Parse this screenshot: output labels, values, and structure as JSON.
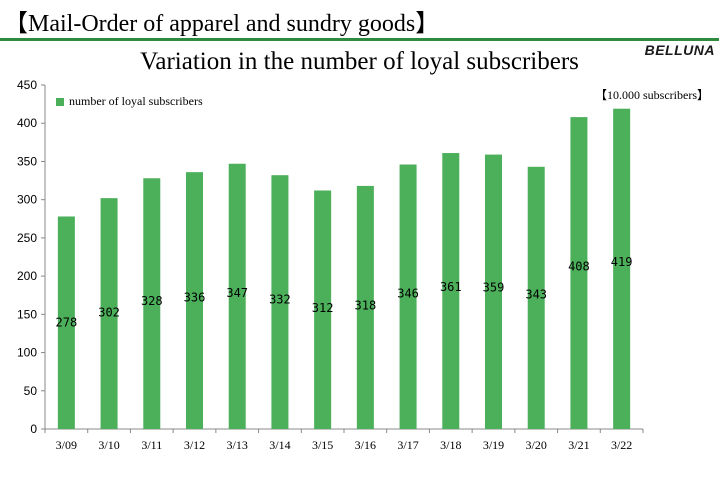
{
  "header": {
    "title": "【Mail-Order of apparel and sundry goods】",
    "brand": "BELLUNA",
    "accent_color": "#2e8b3d"
  },
  "chart_data": {
    "type": "bar",
    "title": "Variation in the number of loyal subscribers",
    "unit_label": "【10.000 subscribers】",
    "xlabel": "",
    "ylabel": "",
    "categories": [
      "3/09",
      "3/10",
      "3/11",
      "3/12",
      "3/13",
      "3/14",
      "3/15",
      "3/16",
      "3/17",
      "3/18",
      "3/19",
      "3/20",
      "3/21",
      "3/22"
    ],
    "series": [
      {
        "name": "number of loyal subscribers",
        "color": "#4caf5a",
        "values": [
          278,
          302,
          328,
          336,
          347,
          332,
          312,
          318,
          346,
          361,
          359,
          343,
          408,
          419
        ]
      }
    ],
    "data_labels": [
      "278",
      "302",
      "328",
      "336",
      "347",
      "332",
      "312",
      "318",
      "346",
      "361",
      "359",
      "343",
      "408",
      "419"
    ],
    "ylim": [
      0,
      450
    ],
    "yticks": [
      0,
      50,
      100,
      150,
      200,
      250,
      300,
      350,
      400,
      450
    ],
    "grid": false,
    "legend_position": "top-left"
  }
}
